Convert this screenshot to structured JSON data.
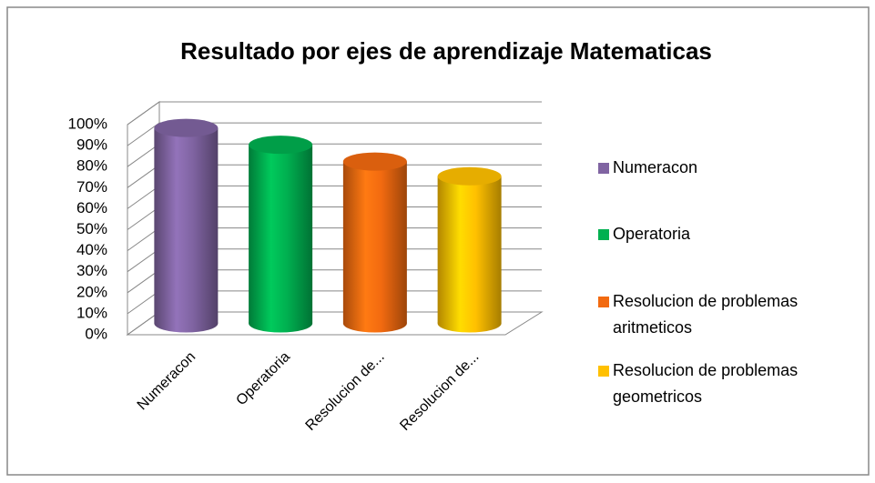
{
  "chart_data": {
    "type": "bar3d",
    "title": "Resultado por ejes de aprendizaje Matematicas",
    "categories": [
      "Numeracon",
      "Operatoria",
      "Resolucion de...",
      "Resolucion de..."
    ],
    "values": [
      93,
      85,
      77,
      70
    ],
    "colors": [
      "#8064a2",
      "#00b050",
      "#f26a10",
      "#ffc000"
    ],
    "legend": [
      "Numeracon",
      "Operatoria",
      "Resolucion de problemas aritmeticos",
      "Resolucion de problemas geometricos"
    ],
    "ylim": [
      0,
      100
    ],
    "yticks": [
      {
        "value": 0,
        "label": "0%"
      },
      {
        "value": 10,
        "label": "10%"
      },
      {
        "value": 20,
        "label": "20%"
      },
      {
        "value": 30,
        "label": "30%"
      },
      {
        "value": 40,
        "label": "40%"
      },
      {
        "value": 50,
        "label": "50%"
      },
      {
        "value": 60,
        "label": "60%"
      },
      {
        "value": 70,
        "label": "70%"
      },
      {
        "value": 80,
        "label": "80%"
      },
      {
        "value": 90,
        "label": "90%"
      },
      {
        "value": 100,
        "label": "100%"
      }
    ],
    "grid": true
  }
}
